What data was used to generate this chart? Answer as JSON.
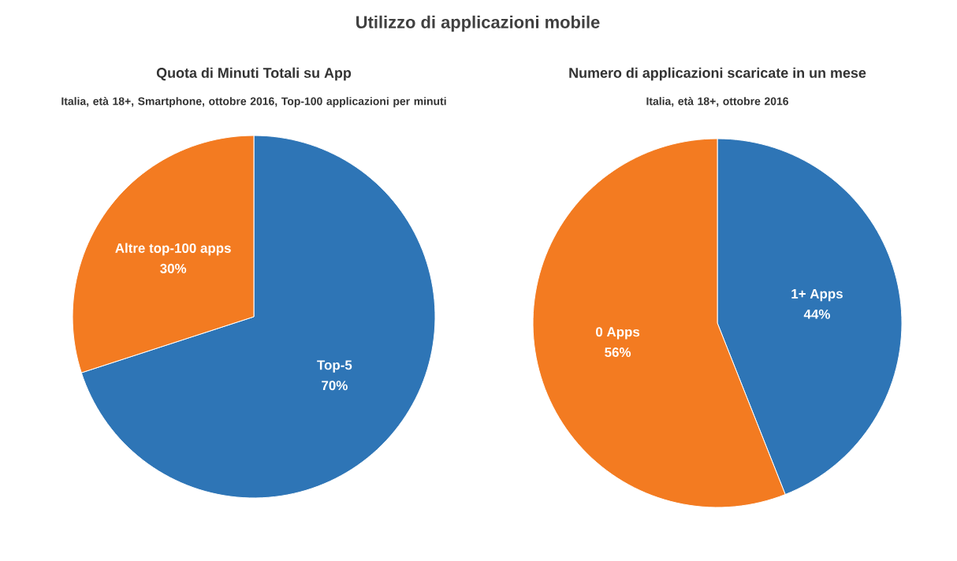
{
  "chart_data": [
    {
      "type": "pie",
      "title": "Quota di Minuti Totali su App",
      "subtitle": "Italia, età 18+, Smartphone, ottobre 2016, Top-100 applicazioni per minuti",
      "annotations": [
        "Utilizzo di applicazioni mobile"
      ],
      "categories": [
        "Top-5",
        "Altre top-100 apps"
      ],
      "values": [
        70,
        30
      ],
      "value_labels": [
        "70%",
        "30%"
      ],
      "colors": [
        "#2e75b6",
        "#f37b21"
      ]
    },
    {
      "type": "pie",
      "title": "Numero di applicazioni scaricate in un mese",
      "subtitle": "Italia, età 18+, ottobre 2016",
      "categories": [
        "1+ Apps",
        "0 Apps"
      ],
      "values": [
        44,
        56
      ],
      "value_labels": [
        "44%",
        "56%"
      ],
      "colors": [
        "#2e75b6",
        "#f37b21"
      ]
    }
  ]
}
